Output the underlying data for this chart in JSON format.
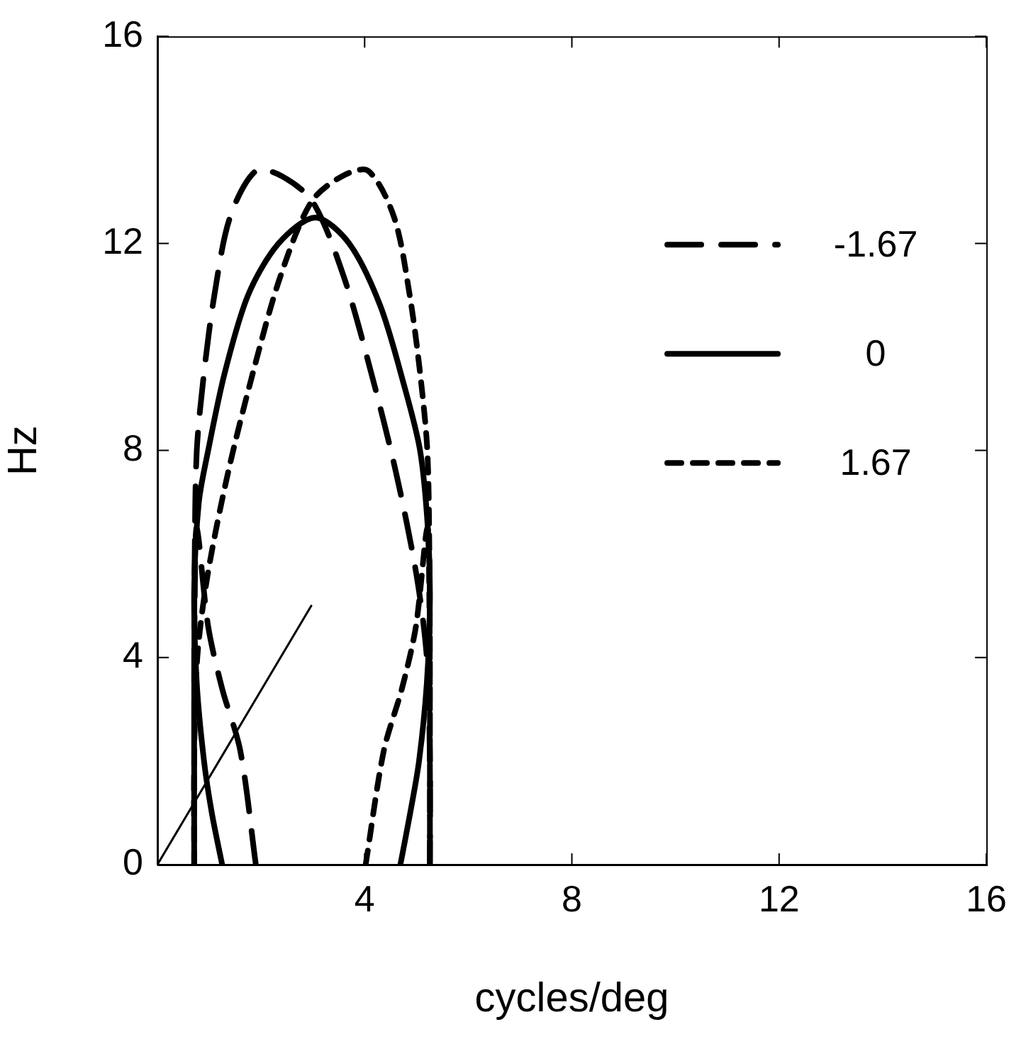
{
  "chart_data": {
    "type": "line",
    "xlabel": "cycles/deg",
    "ylabel": "Hz",
    "xlim": [
      0,
      16
    ],
    "ylim": [
      0,
      16
    ],
    "xticks": [
      {
        "value": 0,
        "label": null
      },
      4,
      8,
      12,
      16
    ],
    "yticks": [
      0,
      4,
      8,
      12,
      16
    ],
    "grid": false,
    "legend": "top right",
    "marker": "none",
    "series": [
      {
        "name": "-1.67",
        "color": "#000000",
        "line_style": "dashed",
        "x": [
          1.9,
          1.6,
          1.25,
          0.98,
          0.76,
          0.72,
          0.71,
          0.71,
          0.71,
          0.71,
          0.71,
          0.72,
          0.76,
          0.9,
          1.1,
          1.4,
          1.9,
          2.4,
          3.0,
          3.6,
          4.1,
          4.6,
          5.0,
          5.2,
          5.26,
          5.26
        ],
        "values": [
          0,
          2.2,
          3.4,
          4.6,
          6.5,
          5,
          3,
          0,
          1.5,
          2,
          4,
          6,
          8,
          9.5,
          11,
          12.5,
          13.4,
          13.3,
          12.8,
          11.35,
          9.6,
          7.6,
          5.6,
          4,
          2,
          0
        ]
      },
      {
        "name": "0",
        "color": "#000000",
        "line_style": "solid",
        "x": [
          1.25,
          1.05,
          0.9,
          0.76,
          0.71,
          0.8,
          0.98,
          1.3,
          1.75,
          2.34,
          3.05,
          3.7,
          4.3,
          4.75,
          5.07,
          5.22,
          5.26,
          5.2,
          5.05,
          4.88,
          4.69
        ],
        "values": [
          0,
          1,
          2,
          3.5,
          5.3,
          7,
          8,
          9.5,
          11,
          12,
          12.5,
          12,
          10.8,
          9.3,
          8,
          6.5,
          5.1,
          3.5,
          2,
          1,
          0
        ]
      },
      {
        "name": "1.67",
        "color": "#000000",
        "line_style": "dotted",
        "x": [
          4.02,
          4.37,
          4.72,
          4.99,
          5.21,
          5.25,
          5.26,
          5.26,
          5.26,
          5.26,
          5.26,
          5.25,
          5.21,
          5.07,
          4.87,
          4.57,
          4.07,
          3.57,
          2.97,
          2.37,
          1.87,
          1.37,
          0.97,
          0.77,
          0.71,
          0.71
        ],
        "values": [
          0,
          2.2,
          3.4,
          4.6,
          6.5,
          5,
          3,
          0,
          1.5,
          2,
          4,
          6,
          8,
          9.5,
          11,
          12.5,
          13.4,
          13.3,
          12.8,
          11.35,
          9.6,
          7.6,
          5.6,
          4,
          2,
          0
        ]
      },
      {
        "color": "#000000",
        "line_style": "solid",
        "x": [
          0,
          2.97
        ],
        "values": [
          0,
          5
        ]
      }
    ]
  }
}
